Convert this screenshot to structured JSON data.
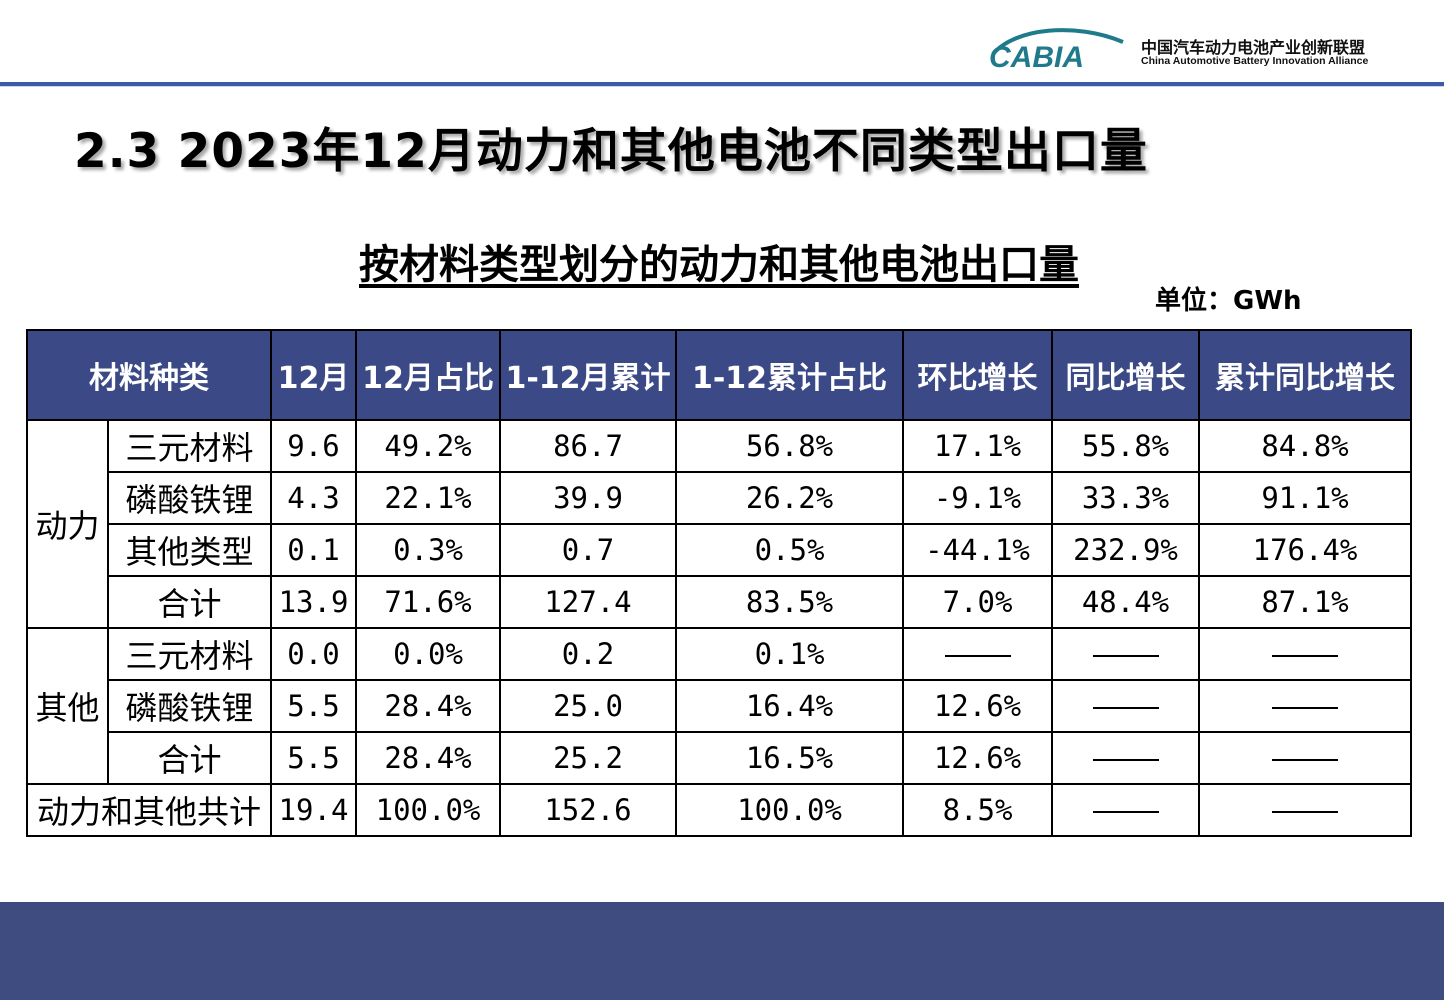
{
  "logo": {
    "mark": "CABIA",
    "name_cn": "中国汽车动力电池产业创新联盟",
    "name_en": "China Automotive Battery Innovation Alliance"
  },
  "page_title": "2.3 2023年12月动力和其他电池不同类型出口量",
  "table_title": "按材料类型划分的动力和其他电池出口量",
  "unit": "单位：GWh",
  "table": {
    "headers": [
      "材料种类",
      "12月",
      "12月占比",
      "1-12月累计",
      "1-12累计占比",
      "环比增长",
      "同比增长",
      "累计同比增长"
    ],
    "groups": [
      {
        "name": "动力",
        "rows": [
          {
            "type": "三元材料",
            "values": [
              "9.6",
              "49.2%",
              "86.7",
              "56.8%",
              "17.1%",
              "55.8%",
              "84.8%"
            ]
          },
          {
            "type": "磷酸铁锂",
            "values": [
              "4.3",
              "22.1%",
              "39.9",
              "26.2%",
              "-9.1%",
              "33.3%",
              "91.1%"
            ]
          },
          {
            "type": "其他类型",
            "values": [
              "0.1",
              "0.3%",
              "0.7",
              "0.5%",
              "-44.1%",
              "232.9%",
              "176.4%"
            ]
          },
          {
            "type": "合计",
            "values": [
              "13.9",
              "71.6%",
              "127.4",
              "83.5%",
              "7.0%",
              "48.4%",
              "87.1%"
            ]
          }
        ]
      },
      {
        "name": "其他",
        "rows": [
          {
            "type": "三元材料",
            "values": [
              "0.0",
              "0.0%",
              "0.2",
              "0.1%",
              "——",
              "——",
              "——"
            ]
          },
          {
            "type": "磷酸铁锂",
            "values": [
              "5.5",
              "28.4%",
              "25.0",
              "16.4%",
              "12.6%",
              "——",
              "——"
            ]
          },
          {
            "type": "合计",
            "values": [
              "5.5",
              "28.4%",
              "25.2",
              "16.5%",
              "12.6%",
              "——",
              "——"
            ]
          }
        ]
      }
    ],
    "total": {
      "label": "动力和其他共计",
      "values": [
        "19.4",
        "100.0%",
        "152.6",
        "100.0%",
        "8.5%",
        "——",
        "——"
      ]
    }
  },
  "colors": {
    "header_bg": "#3b4a86",
    "footer_bg": "#3f4c80",
    "accent_line": "#3d5aa8",
    "logo_teal": "#1f7a8c"
  }
}
